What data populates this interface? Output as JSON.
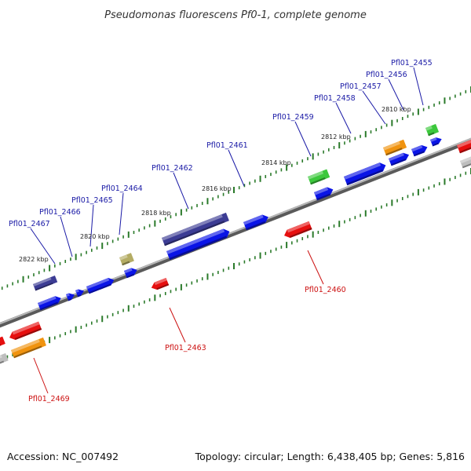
{
  "title": "Pseudomonas fluorescens Pf0-1, complete genome",
  "footer": {
    "accession": "Accession: NC_007492",
    "summary": "Topology: circular; Length: 6,438,405 bp; Genes: 5,816"
  },
  "colors": {
    "cds_blue": "#0a14e6",
    "cds_navy": "#3c3c94",
    "cds_red": "#e60f0f",
    "cds_orange": "#f0930f",
    "cds_green": "#3cc83c",
    "cds_olive": "#b4ac64",
    "cds_gray": "#bebebe",
    "backbone": "#7a7a7a",
    "tick": "#2a7a2a",
    "label_forward": "#1a1aa6",
    "label_reverse": "#cc1111"
  },
  "scale": {
    "unit": "kbp",
    "marks": [
      "2810 kbp",
      "2812 kbp",
      "2814 kbp",
      "2816 kbp",
      "2818 kbp",
      "2820 kbp",
      "2822 kbp"
    ]
  },
  "genes": [
    {
      "label": "Pfl01_2455",
      "strand": "top"
    },
    {
      "label": "Pfl01_2456",
      "strand": "top"
    },
    {
      "label": "Pfl01_2457",
      "strand": "top"
    },
    {
      "label": "Pfl01_2458",
      "strand": "top"
    },
    {
      "label": "Pfl01_2459",
      "strand": "top"
    },
    {
      "label": "Pfl01_2461",
      "strand": "top"
    },
    {
      "label": "Pfl01_2462",
      "strand": "top"
    },
    {
      "label": "Pfl01_2464",
      "strand": "top"
    },
    {
      "label": "Pfl01_2465",
      "strand": "top"
    },
    {
      "label": "Pfl01_2466",
      "strand": "top"
    },
    {
      "label": "Pfl01_2467",
      "strand": "top"
    },
    {
      "label": "Pfl01_2460",
      "strand": "bottom"
    },
    {
      "label": "Pfl01_2463",
      "strand": "bottom"
    },
    {
      "label": "Pfl01_2469",
      "strand": "bottom"
    }
  ]
}
